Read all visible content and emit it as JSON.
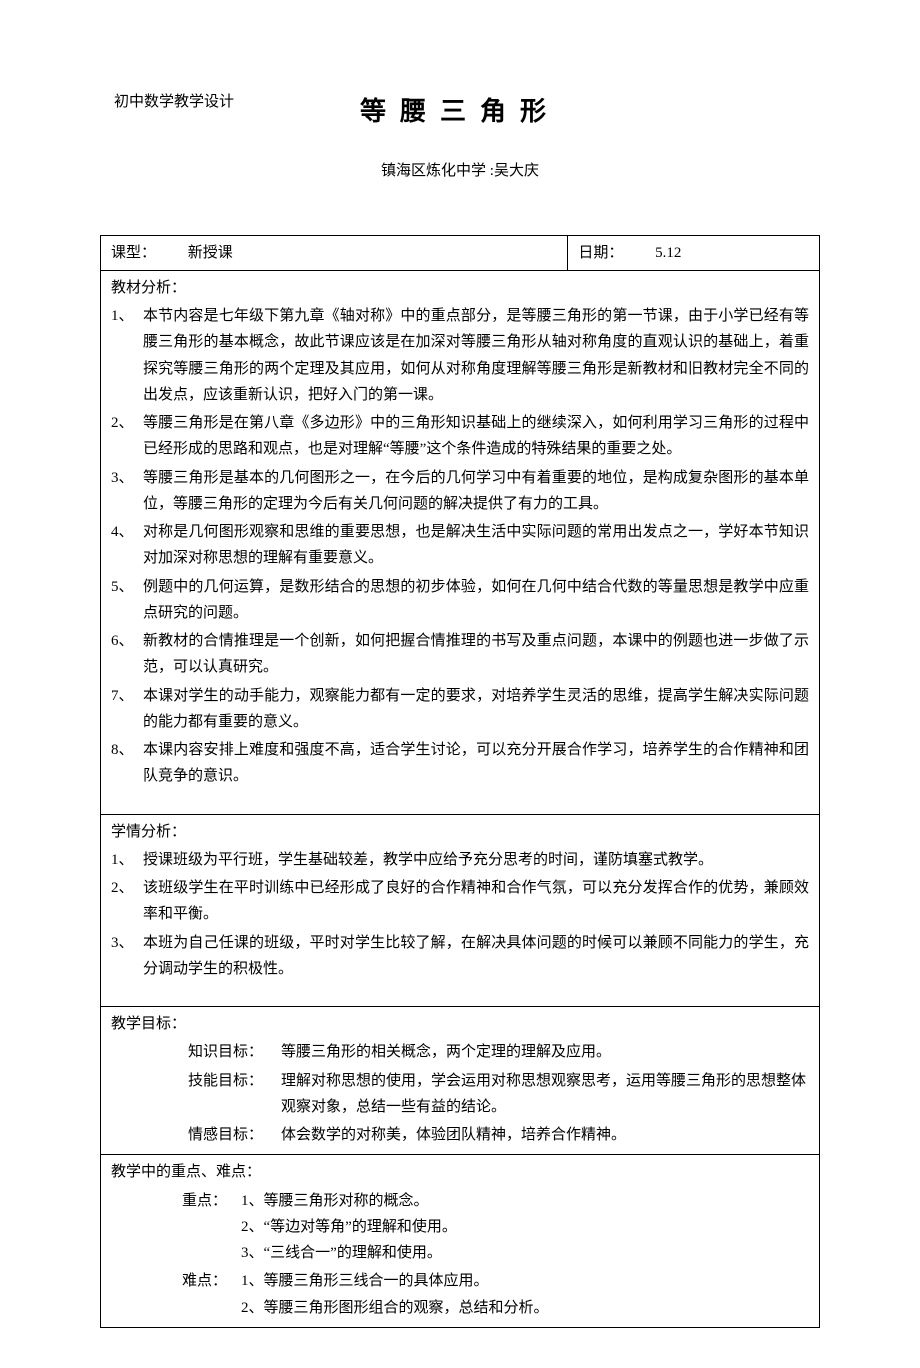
{
  "header": {
    "subject_label": "初中数学教学设计",
    "title": "等腰三角形",
    "author": "镇海区炼化中学 :吴大庆"
  },
  "meta": {
    "type_label": "课型：",
    "type_value": "新授课",
    "date_label": "日期：",
    "date_value": "5.12"
  },
  "material": {
    "title": "教材分析：",
    "items": [
      "本节内容是七年级下第九章《轴对称》中的重点部分，是等腰三角形的第一节课，由于小学已经有等腰三角形的基本概念，故此节课应该是在加深对等腰三角形从轴对称角度的直观认识的基础上，着重探究等腰三角形的两个定理及其应用，如何从对称角度理解等腰三角形是新教材和旧教材完全不同的出发点，应该重新认识，把好入门的第一课。",
      "等腰三角形是在第八章《多边形》中的三角形知识基础上的继续深入，如何利用学习三角形的过程中已经形成的思路和观点，也是对理解“等腰”这个条件造成的特殊结果的重要之处。",
      "等腰三角形是基本的几何图形之一，在今后的几何学习中有着重要的地位，是构成复杂图形的基本单位，等腰三角形的定理为今后有关几何问题的解决提供了有力的工具。",
      "对称是几何图形观察和思维的重要思想，也是解决生活中实际问题的常用出发点之一，学好本节知识对加深对称思想的理解有重要意义。",
      "例题中的几何运算，是数形结合的思想的初步体验，如何在几何中结合代数的等量思想是教学中应重点研究的问题。",
      "新教材的合情推理是一个创新，如何把握合情推理的书写及重点问题，本课中的例题也进一步做了示范，可以认真研究。",
      "本课对学生的动手能力，观察能力都有一定的要求，对培养学生灵活的思维，提高学生解决实际问题的能力都有重要的意义。",
      "本课内容安排上难度和强度不高，适合学生讨论，可以充分开展合作学习，培养学生的合作精神和团队竞争的意识。"
    ]
  },
  "learner": {
    "title": "学情分析：",
    "items": [
      "授课班级为平行班，学生基础较差，教学中应给予充分思考的时间，谨防填塞式教学。",
      "该班级学生在平时训练中已经形成了良好的合作精神和合作气氛，可以充分发挥合作的优势，兼顾效率和平衡。",
      "本班为自己任课的班级，平时对学生比较了解，在解决具体问题的时候可以兼顾不同能力的学生，充分调动学生的积极性。"
    ]
  },
  "goals": {
    "title": "教学目标：",
    "knowledge_label": "知识目标：",
    "knowledge": "等腰三角形的相关概念，两个定理的理解及应用。",
    "skill_label": "技能目标：",
    "skill": "理解对称思想的使用，学会运用对称思想观察思考，运用等腰三角形的思想整体观察对象，总结一些有益的结论。",
    "emotion_label": "情感目标：",
    "emotion": "体会数学的对称美，体验团队精神，培养合作精神。"
  },
  "keys": {
    "title": "教学中的重点、难点：",
    "focus_label": "重点：",
    "focus": [
      "1、等腰三角形对称的概念。",
      "2、“等边对等角”的理解和使用。",
      "3、“三线合一”的理解和使用。"
    ],
    "difficulty_label": "难点：",
    "difficulty": [
      "1、等腰三角形三线合一的具体应用。",
      "2、等腰三角形图形组合的观察，总结和分析。"
    ]
  },
  "colors": {
    "text": "#000000",
    "background": "#ffffff",
    "border": "#000000"
  }
}
